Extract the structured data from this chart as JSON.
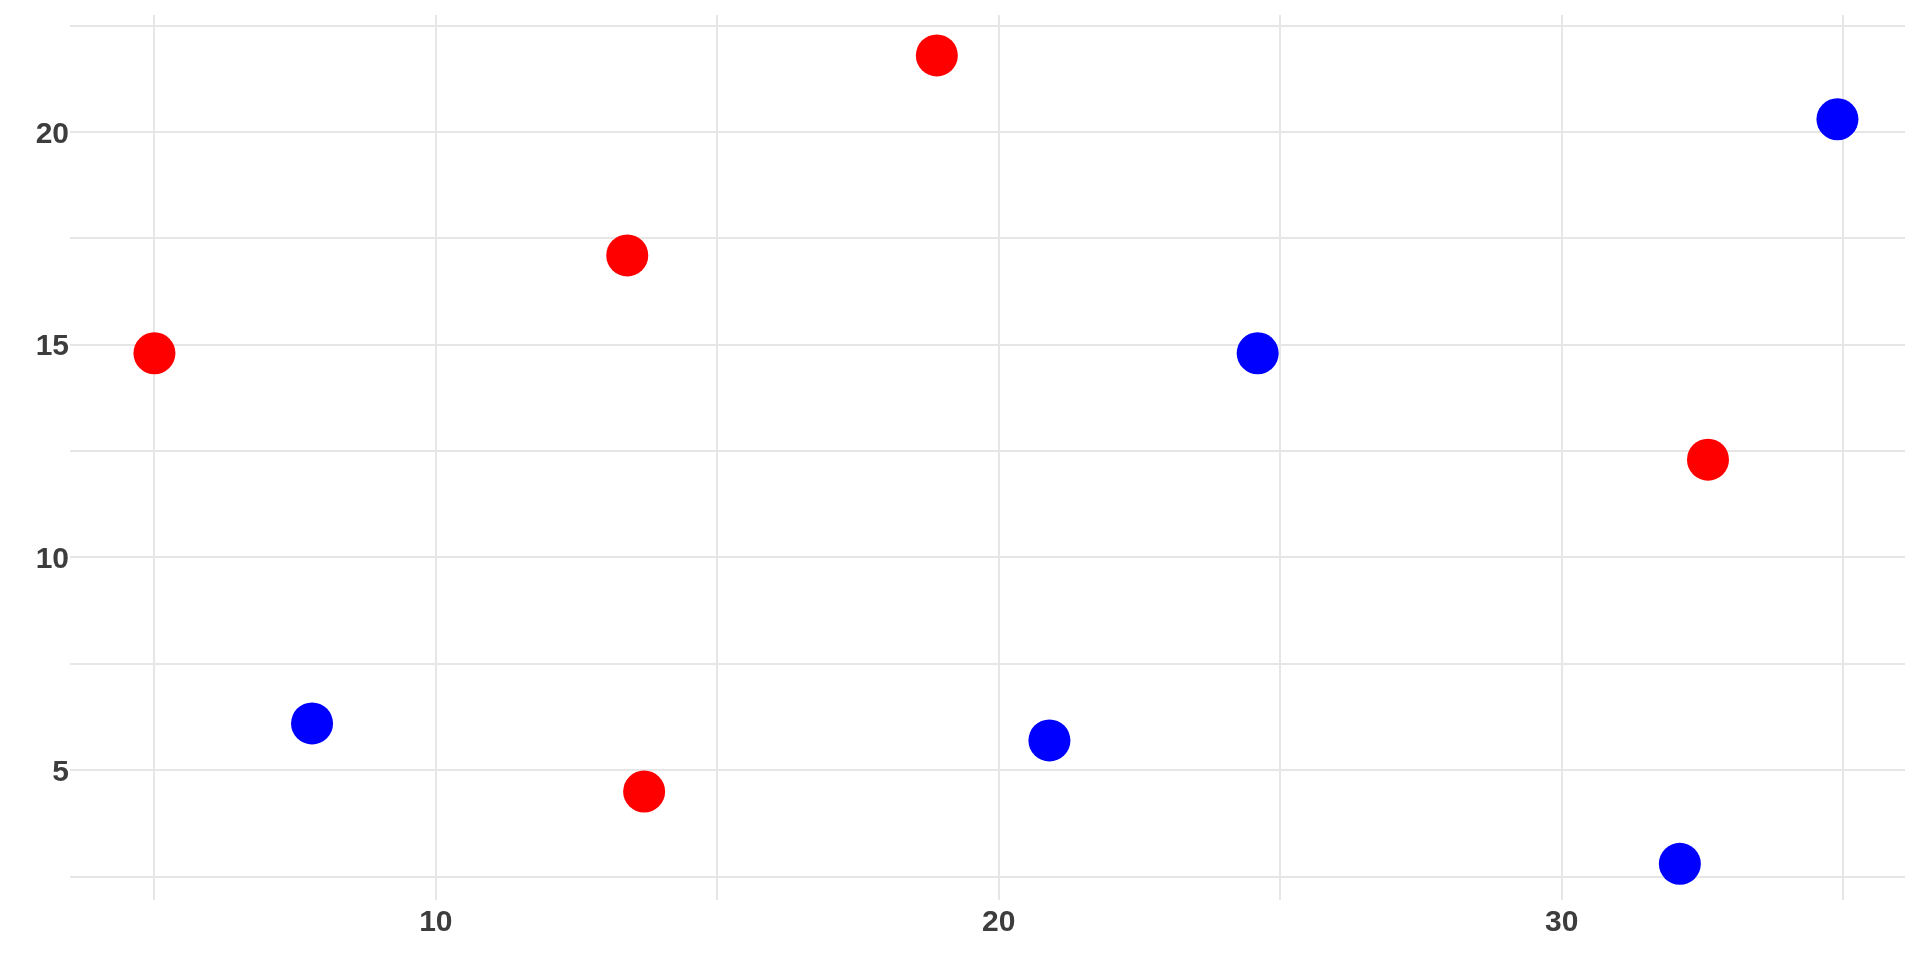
{
  "chart_data": {
    "type": "scatter",
    "marker": "circle",
    "grid": true,
    "xlim": [
      3.5,
      36.1
    ],
    "ylim": [
      1.95,
      22.75
    ],
    "xticks": [
      {
        "value": 5,
        "label": null
      },
      10,
      {
        "value": 15,
        "label": null
      },
      20,
      {
        "value": 25,
        "label": null
      },
      30,
      {
        "value": 35,
        "label": null
      }
    ],
    "yticks": [
      {
        "value": 2.5,
        "label": null
      },
      5,
      {
        "value": 7.5,
        "label": null
      },
      10,
      {
        "value": 12.5,
        "label": null
      },
      15,
      {
        "value": 17.5,
        "label": null
      },
      20,
      {
        "value": 22.5,
        "label": null
      }
    ],
    "series": [
      {
        "color": "#ff0000",
        "x": [
          5.0,
          13.4,
          13.7,
          18.9,
          32.6
        ],
        "values": [
          14.8,
          17.1,
          4.5,
          21.8,
          12.3
        ]
      },
      {
        "color": "#0000ff",
        "x": [
          7.8,
          20.9,
          24.6,
          32.1,
          34.9
        ],
        "values": [
          6.1,
          5.7,
          14.8,
          2.8,
          20.3
        ]
      }
    ]
  }
}
